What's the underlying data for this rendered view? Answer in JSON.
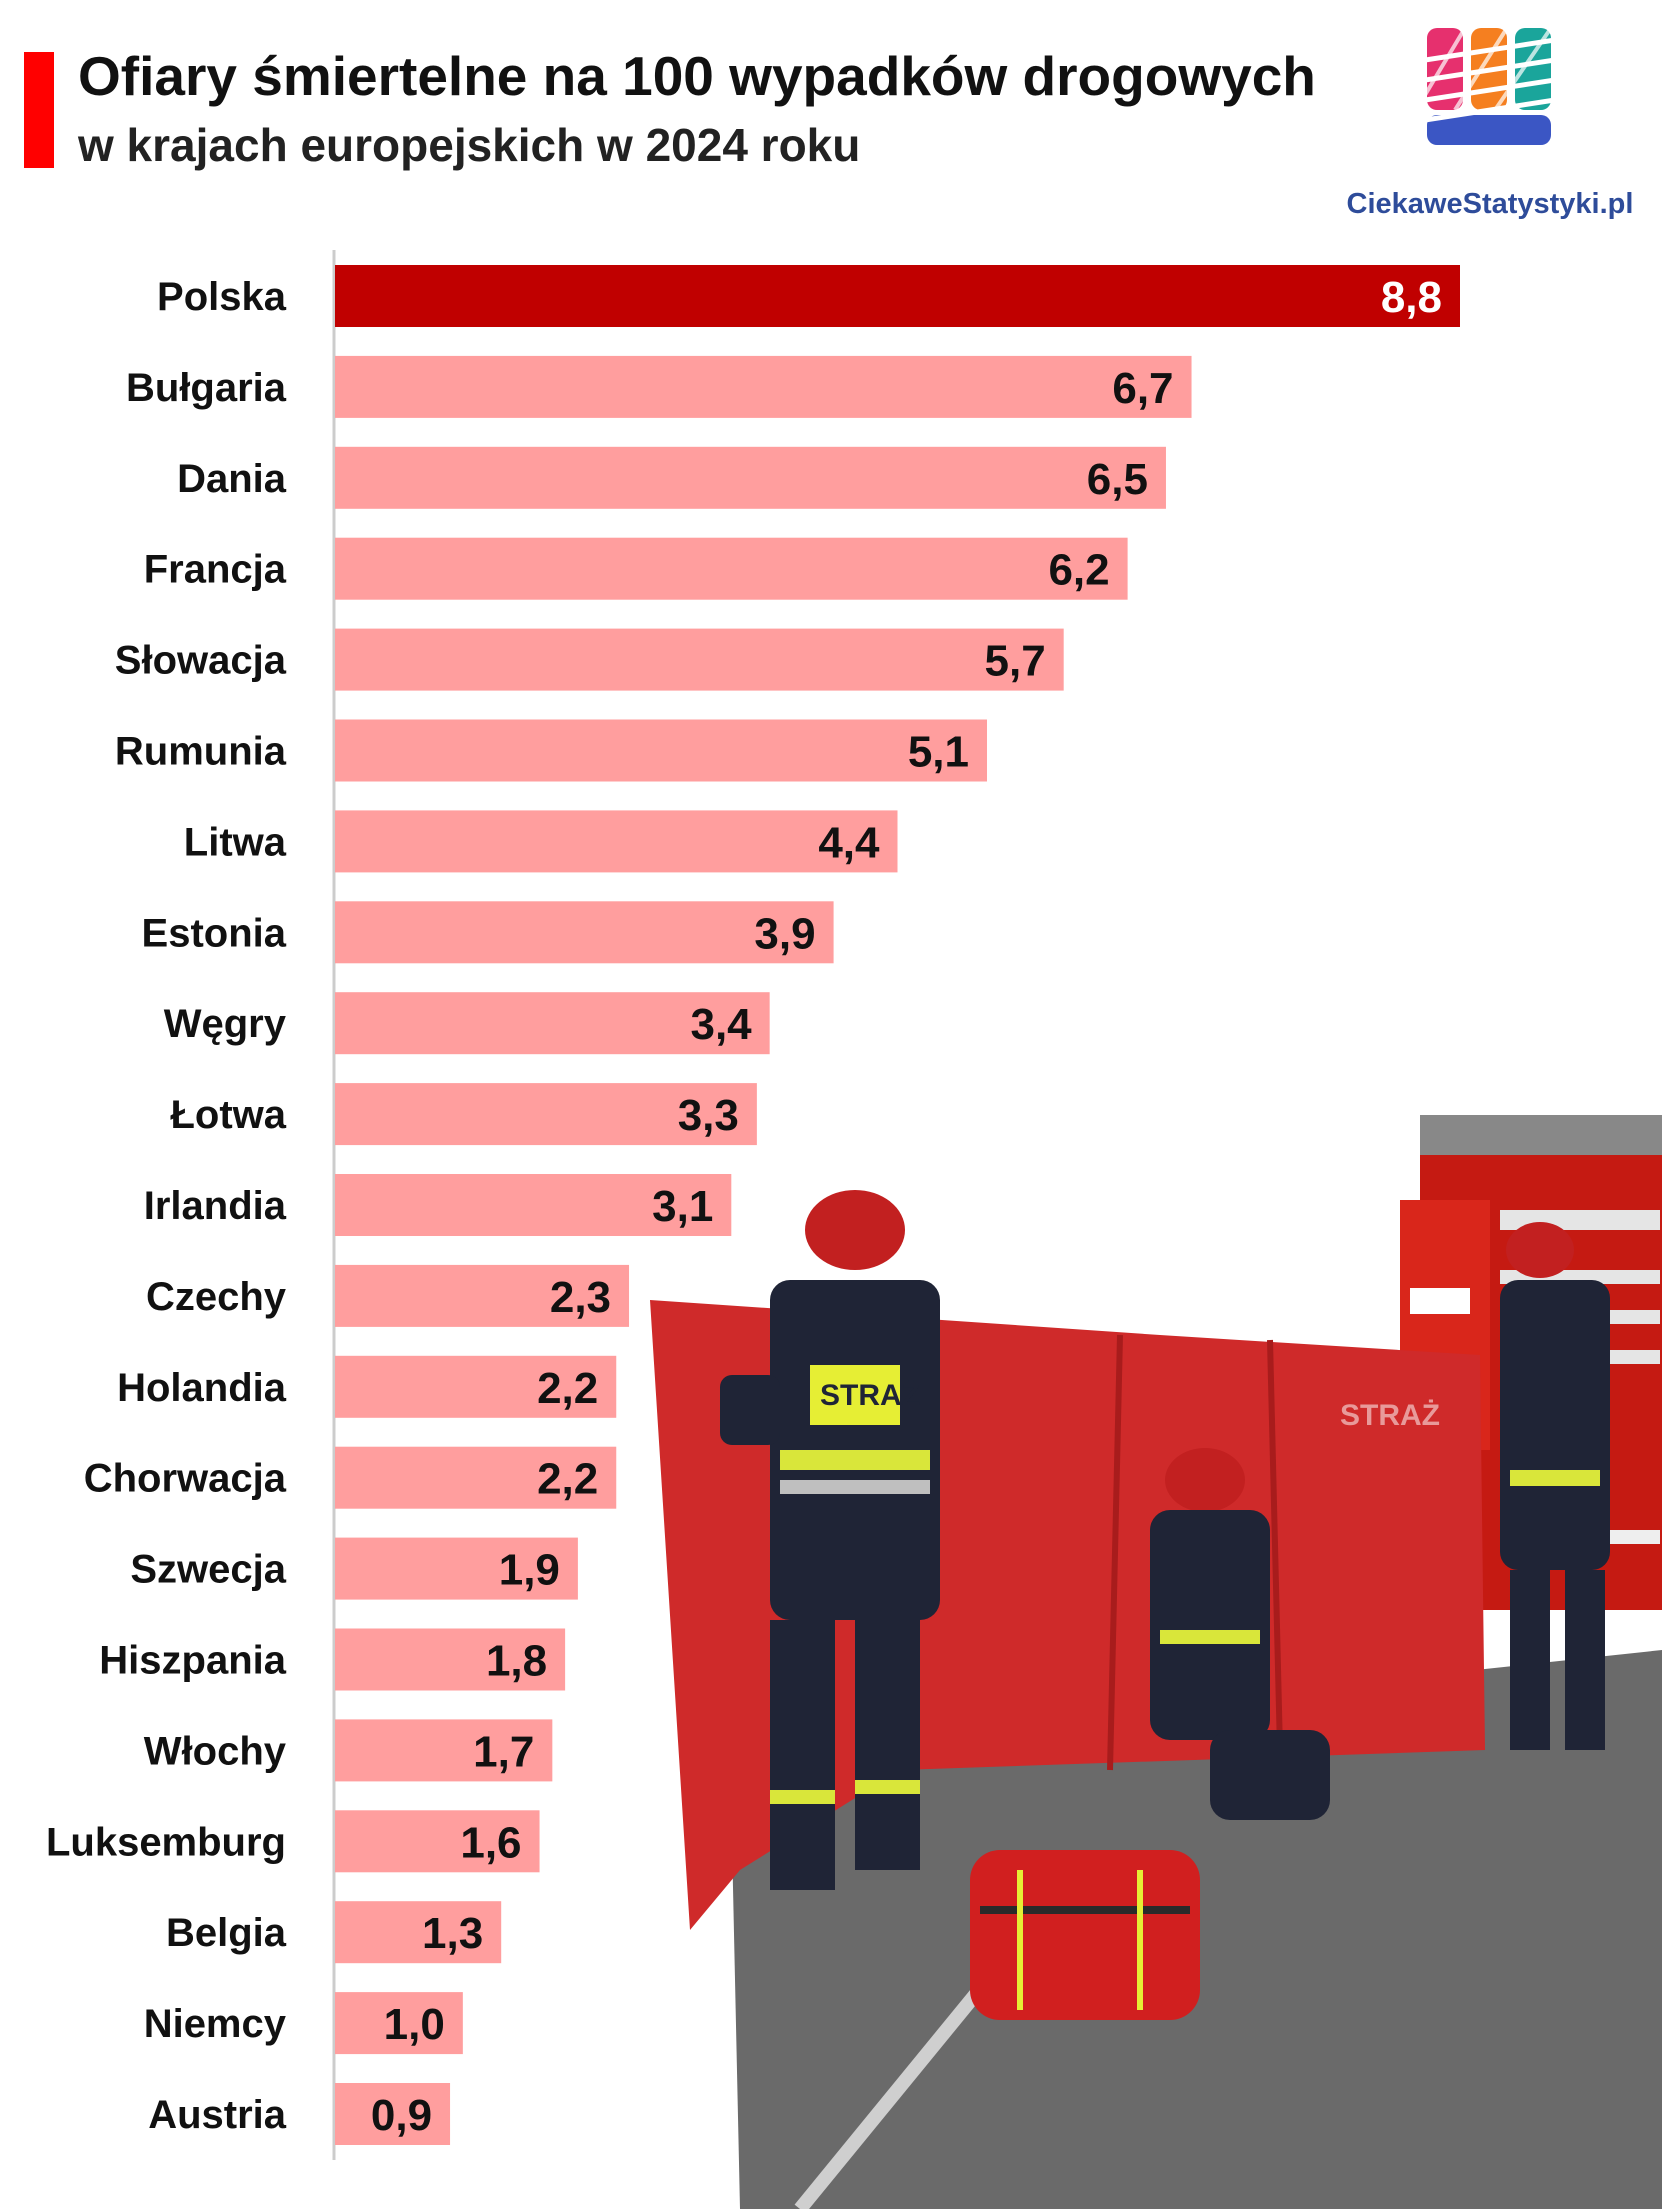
{
  "header": {
    "title": "Ofiary śmiertelne na 100 wypadków drogowych",
    "subtitle": "w krajach europejskich w 2024 roku"
  },
  "logo": {
    "text": "CiekaweStatystyki.pl",
    "colors": [
      "#e6306e",
      "#f57f20",
      "#1aa59b",
      "#3b56c4"
    ]
  },
  "photo": {
    "description_icon": "firefighters-photo",
    "screen_text": "STRAŻ",
    "vest_text": "STRAŻ"
  },
  "colors": {
    "accent": "#ff0000",
    "highlight_bar": "#c00000",
    "bar": "#ff9e9e",
    "axis": "#cccccc"
  },
  "chart_data": {
    "type": "bar",
    "orientation": "horizontal",
    "title": "Ofiary śmiertelne na 100 wypadków drogowych",
    "subtitle": "w krajach europejskich w 2024 roku",
    "xlabel": "",
    "ylabel": "",
    "xlim": [
      0,
      8.8
    ],
    "grid": false,
    "legend": "none",
    "highlight": "Polska",
    "categories": [
      "Polska",
      "Bułgaria",
      "Dania",
      "Francja",
      "Słowacja",
      "Rumunia",
      "Litwa",
      "Estonia",
      "Węgry",
      "Łotwa",
      "Irlandia",
      "Czechy",
      "Holandia",
      "Chorwacja",
      "Szwecja",
      "Hiszpania",
      "Włochy",
      "Luksemburg",
      "Belgia",
      "Niemcy",
      "Austria"
    ],
    "values": [
      8.8,
      6.7,
      6.5,
      6.2,
      5.7,
      5.1,
      4.4,
      3.9,
      3.4,
      3.3,
      3.1,
      2.3,
      2.2,
      2.2,
      1.9,
      1.8,
      1.7,
      1.6,
      1.3,
      1.0,
      0.9
    ],
    "value_labels": [
      "8,8",
      "6,7",
      "6,5",
      "6,2",
      "5,7",
      "5,1",
      "4,4",
      "3,9",
      "3,4",
      "3,3",
      "3,1",
      "2,3",
      "2,2",
      "2,2",
      "1,9",
      "1,8",
      "1,7",
      "1,6",
      "1,3",
      "1,0",
      "0,9"
    ]
  }
}
